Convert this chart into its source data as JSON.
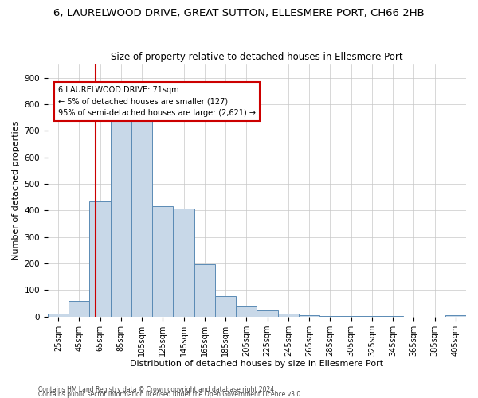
{
  "title1": "6, LAURELWOOD DRIVE, GREAT SUTTON, ELLESMERE PORT, CH66 2HB",
  "title2": "Size of property relative to detached houses in Ellesmere Port",
  "xlabel": "Distribution of detached houses by size in Ellesmere Port",
  "ylabel": "Number of detached properties",
  "footnote1": "Contains HM Land Registry data © Crown copyright and database right 2024.",
  "footnote2": "Contains public sector information licensed under the Open Government Licence v3.0.",
  "bar_edges": [
    25,
    45,
    65,
    85,
    105,
    125,
    145,
    165,
    185,
    205,
    225,
    245,
    265,
    285,
    305,
    325,
    345,
    365,
    385,
    405,
    425
  ],
  "bar_heights": [
    10,
    58,
    435,
    750,
    752,
    415,
    408,
    197,
    76,
    38,
    23,
    10,
    5,
    3,
    2,
    1,
    1,
    0,
    0,
    5,
    0
  ],
  "bar_color": "#c8d8e8",
  "bar_edge_color": "#5a8ab5",
  "red_line_x": 71,
  "annotation_text": "6 LAURELWOOD DRIVE: 71sqm\n← 5% of detached houses are smaller (127)\n95% of semi-detached houses are larger (2,621) →",
  "annotation_box_color": "#ffffff",
  "annotation_box_edge": "#cc0000",
  "ylim": [
    0,
    950
  ],
  "yticks": [
    0,
    100,
    200,
    300,
    400,
    500,
    600,
    700,
    800,
    900
  ],
  "background_color": "#ffffff",
  "grid_color": "#c8c8c8",
  "title1_fontsize": 9.5,
  "title2_fontsize": 8.5,
  "xlabel_fontsize": 8,
  "ylabel_fontsize": 8,
  "annotation_fontsize": 7,
  "tick_fontsize": 7,
  "ytick_fontsize": 7.5
}
